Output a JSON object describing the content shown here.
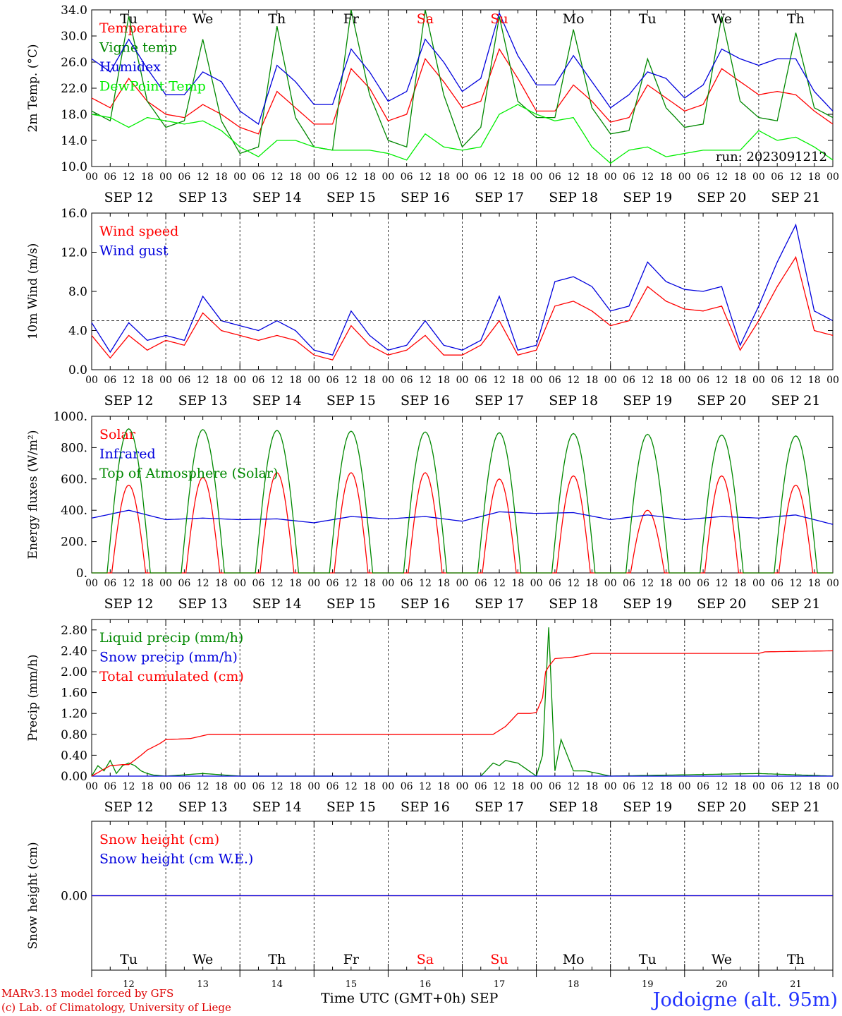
{
  "chart_data": [
    {
      "type": "line",
      "ylabel": "2m Temp. (°C)",
      "ylim": [
        10,
        34
      ],
      "yticks": [
        "34.0",
        "30.0",
        "26.0",
        "22.0",
        "18.0",
        "14.0",
        "10.0"
      ],
      "grid": "vertical dashed day separators",
      "legend_placement": "left",
      "annotation": "run: 2023091212",
      "series": [
        {
          "name": "Temperature",
          "color": "#ff0000",
          "x": [
            0,
            6,
            12,
            18,
            24,
            30,
            36,
            42,
            48,
            54,
            60,
            66,
            72,
            78,
            84,
            90,
            96,
            102,
            108,
            114,
            120,
            126,
            132,
            138,
            144,
            150,
            156,
            162,
            168,
            174,
            180,
            186,
            192,
            198,
            204,
            210,
            216,
            222,
            228,
            234,
            240
          ],
          "values": [
            20.5,
            19.0,
            23.5,
            20.0,
            18.0,
            17.5,
            19.5,
            18.0,
            16.0,
            15.0,
            21.5,
            19.0,
            16.5,
            16.5,
            25.0,
            22.0,
            17.0,
            18.0,
            26.5,
            23.0,
            19.0,
            20.0,
            28.0,
            23.5,
            18.5,
            18.5,
            22.5,
            20.0,
            16.8,
            17.5,
            22.5,
            20.5,
            18.5,
            19.5,
            25.0,
            23.0,
            21.0,
            21.5,
            21.0,
            18.5,
            16.5
          ]
        },
        {
          "name": "Vigne temp",
          "color": "#008800",
          "x": [
            0,
            6,
            12,
            18,
            24,
            30,
            36,
            42,
            48,
            54,
            60,
            66,
            72,
            78,
            84,
            90,
            96,
            102,
            108,
            114,
            120,
            126,
            132,
            138,
            144,
            150,
            156,
            162,
            168,
            174,
            180,
            186,
            192,
            198,
            204,
            210,
            216,
            222,
            228,
            234,
            240
          ],
          "values": [
            18.5,
            17.0,
            33.0,
            20.0,
            16.0,
            17.0,
            29.5,
            17.0,
            12.0,
            13.0,
            31.5,
            17.5,
            13.0,
            12.5,
            34.0,
            21.0,
            14.0,
            13.0,
            34.0,
            21.0,
            13.0,
            16.0,
            33.0,
            20.0,
            17.5,
            17.5,
            31.0,
            19.0,
            15.0,
            15.5,
            26.5,
            19.0,
            16.0,
            16.5,
            33.0,
            20.0,
            17.5,
            17.0,
            30.5,
            19.0,
            17.5
          ]
        },
        {
          "name": "Humidex",
          "color": "#0000dd",
          "x": [
            0,
            6,
            12,
            18,
            24,
            30,
            36,
            42,
            48,
            54,
            60,
            66,
            72,
            78,
            84,
            90,
            96,
            102,
            108,
            114,
            120,
            126,
            132,
            138,
            144,
            150,
            156,
            162,
            168,
            174,
            180,
            186,
            192,
            198,
            204,
            210,
            216,
            222,
            228,
            234,
            240
          ],
          "values": [
            26.5,
            24.5,
            29.5,
            25.0,
            21.0,
            21.0,
            24.5,
            23.0,
            18.5,
            16.5,
            25.5,
            23.0,
            19.5,
            19.5,
            28.0,
            24.5,
            20.0,
            21.5,
            29.5,
            26.0,
            21.5,
            23.5,
            33.5,
            27.0,
            22.5,
            22.5,
            27.0,
            23.0,
            19.0,
            21.0,
            24.5,
            23.5,
            20.5,
            22.5,
            28.0,
            26.5,
            25.5,
            26.5,
            26.5,
            21.5,
            18.5
          ]
        },
        {
          "name": "DewPoint Temp",
          "color": "#00ee00",
          "x": [
            0,
            6,
            12,
            18,
            24,
            30,
            36,
            42,
            48,
            54,
            60,
            66,
            72,
            78,
            84,
            90,
            96,
            102,
            108,
            114,
            120,
            126,
            132,
            138,
            144,
            150,
            156,
            162,
            168,
            174,
            180,
            186,
            192,
            198,
            204,
            210,
            216,
            222,
            228,
            234,
            240
          ],
          "values": [
            18.0,
            17.5,
            16.0,
            17.5,
            17.0,
            16.5,
            17.0,
            15.5,
            13.0,
            11.5,
            14.0,
            14.0,
            13.0,
            12.5,
            12.5,
            12.5,
            12.0,
            11.0,
            15.0,
            13.0,
            12.5,
            13.0,
            18.0,
            19.5,
            18.0,
            17.0,
            17.5,
            13.0,
            10.5,
            12.5,
            13.0,
            11.5,
            12.0,
            12.5,
            12.5,
            12.5,
            15.5,
            14.0,
            14.5,
            13.0,
            11.0
          ]
        }
      ]
    },
    {
      "type": "line",
      "ylabel": "10m Wind (m/s)",
      "ylim": [
        0,
        16
      ],
      "yticks": [
        "16.0",
        "12.0",
        "8.0",
        "4.0",
        "0.0"
      ],
      "reference_line": 5,
      "legend_placement": "left",
      "series": [
        {
          "name": "Wind speed",
          "color": "#ff0000",
          "x": [
            0,
            6,
            12,
            18,
            24,
            30,
            36,
            42,
            48,
            54,
            60,
            66,
            72,
            78,
            84,
            90,
            96,
            102,
            108,
            114,
            120,
            126,
            132,
            138,
            144,
            150,
            156,
            162,
            168,
            174,
            180,
            186,
            192,
            198,
            204,
            210,
            216,
            222,
            228,
            234,
            240
          ],
          "values": [
            3.5,
            1.2,
            3.5,
            2.0,
            3.0,
            2.5,
            5.8,
            4.0,
            3.5,
            3.0,
            3.5,
            3.0,
            1.5,
            1.0,
            4.5,
            2.5,
            1.5,
            2.0,
            3.5,
            1.5,
            1.5,
            2.5,
            5.0,
            1.5,
            2.0,
            6.5,
            7.0,
            6.0,
            4.5,
            5.0,
            8.5,
            7.0,
            6.2,
            6.0,
            6.5,
            2.0,
            5.0,
            8.5,
            11.5,
            4.0,
            3.5
          ]
        },
        {
          "name": "Wind gust",
          "color": "#0000dd",
          "x": [
            0,
            6,
            12,
            18,
            24,
            30,
            36,
            42,
            48,
            54,
            60,
            66,
            72,
            78,
            84,
            90,
            96,
            102,
            108,
            114,
            120,
            126,
            132,
            138,
            144,
            150,
            156,
            162,
            168,
            174,
            180,
            186,
            192,
            198,
            204,
            210,
            216,
            222,
            228,
            234,
            240
          ],
          "values": [
            4.8,
            1.8,
            4.8,
            3.0,
            3.5,
            3.0,
            7.5,
            5.0,
            4.5,
            4.0,
            5.0,
            4.0,
            2.0,
            1.5,
            6.0,
            3.5,
            2.0,
            2.5,
            5.0,
            2.5,
            2.0,
            3.0,
            7.5,
            2.0,
            2.5,
            9.0,
            9.5,
            8.5,
            6.0,
            6.5,
            11.0,
            9.0,
            8.2,
            8.0,
            8.5,
            2.5,
            6.5,
            11.0,
            14.8,
            6.0,
            5.0
          ]
        }
      ]
    },
    {
      "type": "line",
      "ylabel": "Energy fluxes (W/m²)",
      "ylim": [
        0,
        1000
      ],
      "yticks": [
        "1000.",
        "800.",
        "600.",
        "400.",
        "200.",
        "0."
      ],
      "legend_placement": "left",
      "series": [
        {
          "name": "Solar",
          "color": "#ff0000",
          "day_peaks": [
            560,
            610,
            640,
            640,
            640,
            600,
            620,
            400,
            620,
            560
          ]
        },
        {
          "name": "Infrared",
          "color": "#0000dd",
          "x": [
            0,
            12,
            24,
            36,
            48,
            60,
            72,
            84,
            96,
            108,
            120,
            132,
            144,
            156,
            168,
            180,
            192,
            204,
            216,
            228,
            240
          ],
          "values": [
            350,
            400,
            340,
            350,
            340,
            345,
            320,
            360,
            345,
            360,
            330,
            390,
            380,
            385,
            340,
            370,
            340,
            360,
            350,
            370,
            310
          ]
        },
        {
          "name": "Top of Atmosphere (Solar)",
          "color": "#008800",
          "day_peaks": [
            920,
            915,
            910,
            905,
            900,
            895,
            890,
            885,
            880,
            875
          ]
        }
      ]
    },
    {
      "type": "line",
      "ylabel": "Precip (mm/h)",
      "ylim": [
        0,
        3.0
      ],
      "yticks": [
        "2.80",
        "2.40",
        "2.00",
        "1.60",
        "1.20",
        "0.80",
        "0.40",
        "0.00"
      ],
      "legend_placement": "left",
      "series": [
        {
          "name": "Liquid precip (mm/h)",
          "color": "#008800",
          "x": [
            0,
            2,
            4,
            6,
            8,
            10,
            12,
            14,
            16,
            18,
            20,
            24,
            36,
            48,
            60,
            96,
            120,
            126,
            130,
            132,
            134,
            138,
            144,
            146,
            148,
            150,
            152,
            156,
            160,
            168,
            216,
            240
          ],
          "values": [
            0.0,
            0.2,
            0.1,
            0.3,
            0.05,
            0.2,
            0.25,
            0.2,
            0.1,
            0.05,
            0.02,
            0.0,
            0.05,
            0.0,
            0.0,
            0.0,
            0.0,
            0.0,
            0.25,
            0.2,
            0.3,
            0.25,
            0.0,
            0.4,
            2.85,
            0.1,
            0.7,
            0.1,
            0.1,
            0.0,
            0.05,
            0.0
          ]
        },
        {
          "name": "Snow precip (mm/h)",
          "color": "#0000dd",
          "x": [
            0,
            240
          ],
          "values": [
            0,
            0
          ]
        },
        {
          "name": "Total cumulated (cm)",
          "color": "#ff0000",
          "x": [
            0,
            6,
            10,
            12,
            16,
            18,
            22,
            24,
            32,
            38,
            48,
            72,
            96,
            120,
            130,
            134,
            138,
            142,
            144,
            146,
            147,
            148,
            150,
            156,
            162,
            168,
            192,
            216,
            218,
            240
          ],
          "values": [
            0.0,
            0.2,
            0.22,
            0.22,
            0.4,
            0.5,
            0.62,
            0.7,
            0.72,
            0.8,
            0.8,
            0.8,
            0.8,
            0.8,
            0.8,
            0.95,
            1.2,
            1.2,
            1.22,
            1.5,
            2.0,
            2.1,
            2.25,
            2.28,
            2.35,
            2.35,
            2.35,
            2.35,
            2.38,
            2.4
          ]
        }
      ]
    },
    {
      "type": "line",
      "ylabel": "Snow height (cm)",
      "yticks": [
        "0.00"
      ],
      "legend_placement": "left",
      "series": [
        {
          "name": "Snow height (cm)",
          "color": "#ff0000",
          "x": [
            0,
            240
          ],
          "values": [
            0,
            0
          ]
        },
        {
          "name": "Snow height (cm W.E.)",
          "color": "#0000dd",
          "x": [
            0,
            240
          ],
          "values": [
            0,
            0
          ]
        }
      ]
    }
  ],
  "axis": {
    "hour_ticks": [
      "00",
      "06",
      "12",
      "18"
    ],
    "dates": [
      "SEP 12",
      "SEP 13",
      "SEP 14",
      "SEP 15",
      "SEP 16",
      "SEP 17",
      "SEP 18",
      "SEP 19",
      "SEP 20",
      "SEP 21"
    ],
    "weekdays": [
      "Tu",
      "We",
      "Th",
      "Fr",
      "Sa",
      "Su",
      "Mo",
      "Tu",
      "We",
      "Th"
    ],
    "weekday_colors": [
      "#000000",
      "#000000",
      "#000000",
      "#000000",
      "#ff0000",
      "#ff0000",
      "#000000",
      "#000000",
      "#000000",
      "#000000"
    ],
    "day_numbers": [
      "12",
      "13",
      "14",
      "15",
      "16",
      "17",
      "18",
      "19",
      "20",
      "21"
    ],
    "month": "SEP"
  },
  "footer": {
    "xlabel": "Time UTC (GMT+0h)",
    "model_line": "MARv3.13 model forced by GFS",
    "credit_line": "(c) Lab. of Climatology, University of Liege",
    "station": "Jodoigne (alt. 95m)"
  }
}
